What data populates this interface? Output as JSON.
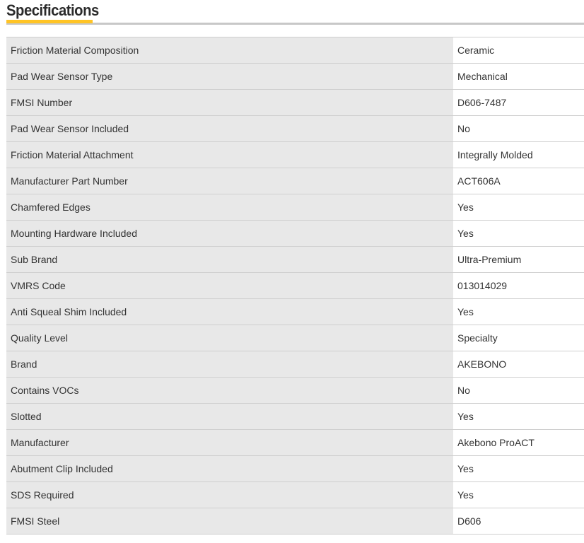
{
  "header": {
    "title": "Specifications"
  },
  "colors": {
    "accent": "#ffc426",
    "label_bg": "#e8e8e8",
    "rule": "#c8c8c8"
  },
  "specs": [
    {
      "label": "Friction Material Composition",
      "value": "Ceramic"
    },
    {
      "label": "Pad Wear Sensor Type",
      "value": "Mechanical"
    },
    {
      "label": "FMSI Number",
      "value": "D606-7487"
    },
    {
      "label": "Pad Wear Sensor Included",
      "value": "No"
    },
    {
      "label": "Friction Material Attachment",
      "value": "Integrally Molded"
    },
    {
      "label": "Manufacturer Part Number",
      "value": "ACT606A"
    },
    {
      "label": "Chamfered Edges",
      "value": "Yes"
    },
    {
      "label": "Mounting Hardware Included",
      "value": "Yes"
    },
    {
      "label": "Sub Brand",
      "value": "Ultra-Premium"
    },
    {
      "label": "VMRS Code",
      "value": "013014029"
    },
    {
      "label": "Anti Squeal Shim Included",
      "value": "Yes"
    },
    {
      "label": "Quality Level",
      "value": "Specialty"
    },
    {
      "label": "Brand",
      "value": "AKEBONO"
    },
    {
      "label": "Contains VOCs",
      "value": "No"
    },
    {
      "label": "Slotted",
      "value": "Yes"
    },
    {
      "label": "Manufacturer",
      "value": "Akebono ProACT"
    },
    {
      "label": "Abutment Clip Included",
      "value": "Yes"
    },
    {
      "label": "SDS Required",
      "value": "Yes"
    },
    {
      "label": "FMSI Steel",
      "value": "D606"
    }
  ]
}
